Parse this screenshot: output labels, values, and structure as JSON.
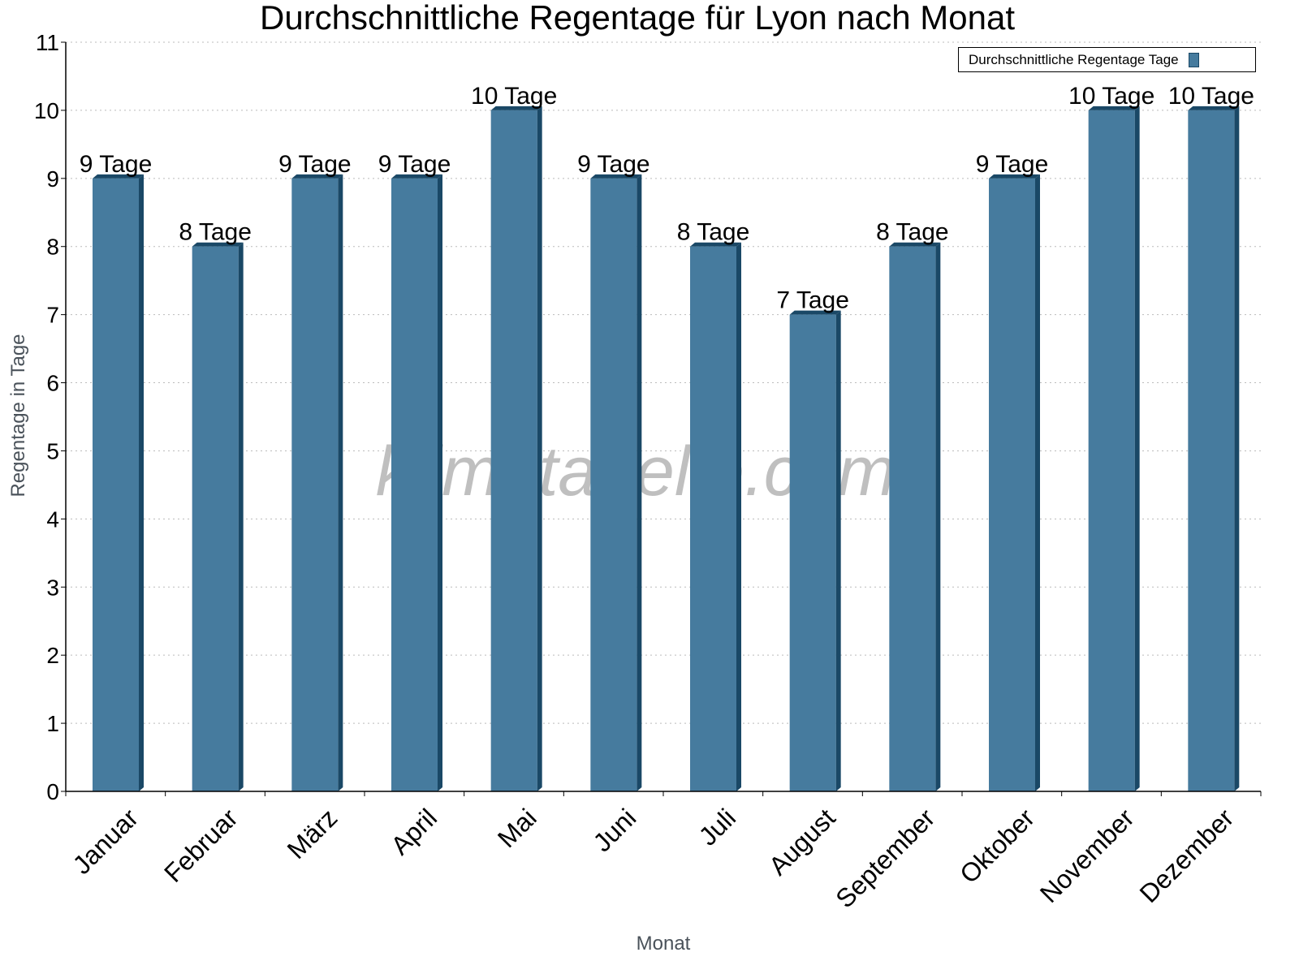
{
  "chart_data": {
    "type": "bar",
    "title": "Durchschnittliche Regentage für Lyon nach Monat",
    "xlabel": "Monat",
    "ylabel": "Regentage in Tage",
    "ylim": [
      0,
      11
    ],
    "yticks": [
      "0",
      "1",
      "2",
      "3",
      "4",
      "5",
      "6",
      "7",
      "8",
      "9",
      "10",
      "11"
    ],
    "grid": true,
    "legend_position": "top-right",
    "categories": [
      "Januar",
      "Februar",
      "März",
      "April",
      "Mai",
      "Juni",
      "Juli",
      "August",
      "September",
      "Oktober",
      "November",
      "Dezember"
    ],
    "series": [
      {
        "name": "Durchschnittliche Regentage Tage",
        "values": [
          9,
          8,
          9,
          9,
          10,
          9,
          8,
          7,
          8,
          9,
          10,
          10
        ],
        "color": "#467b9e",
        "side_color": "#1a4866"
      }
    ],
    "data_labels": [
      "9 Tage",
      "8 Tage",
      "9 Tage",
      "9 Tage",
      "10 Tage",
      "9 Tage",
      "8 Tage",
      "7 Tage",
      "8 Tage",
      "9 Tage",
      "10 Tage",
      "10 Tage"
    ],
    "watermark": "klimatabelle.com"
  }
}
